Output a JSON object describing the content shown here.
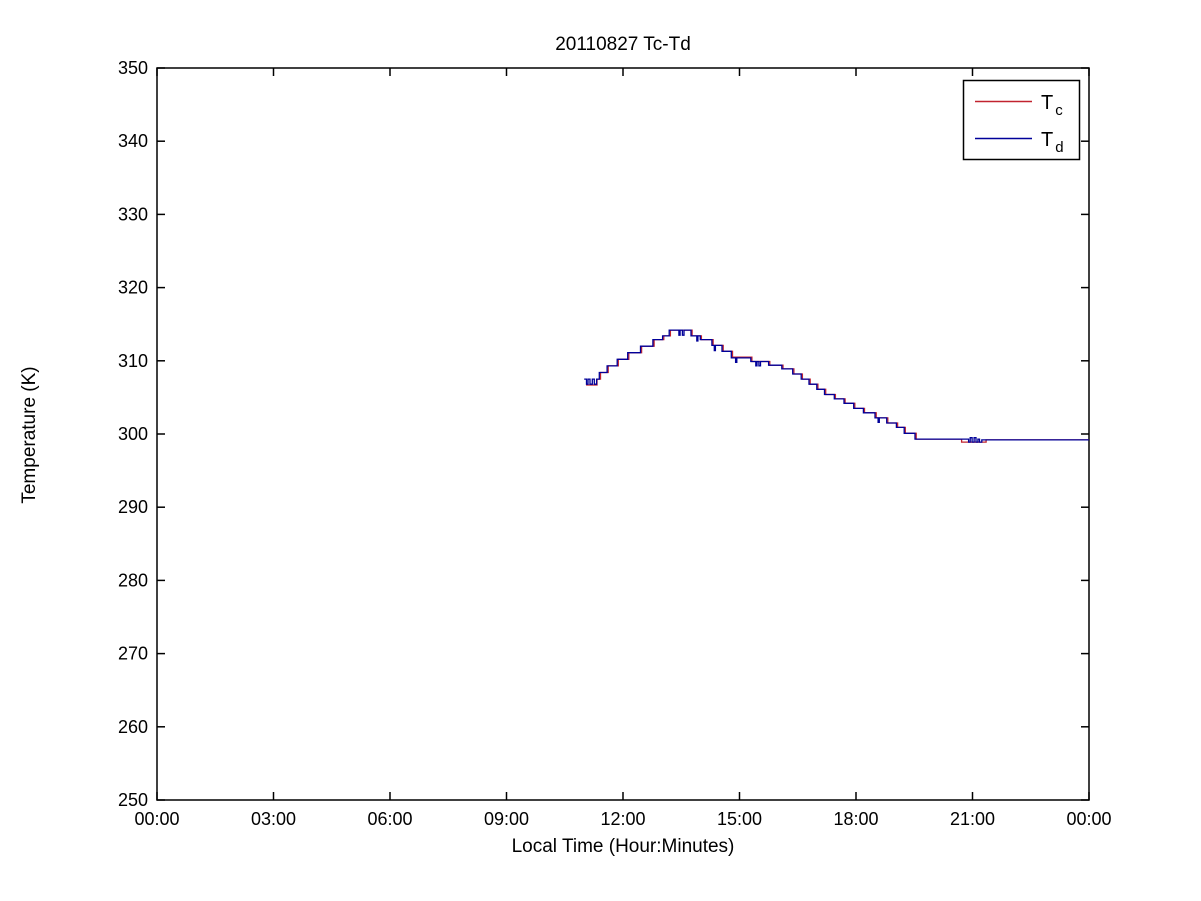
{
  "chart_data": {
    "type": "line",
    "title": "20110827 Tc-Td",
    "xlabel": "Local Time (Hour:Minutes)",
    "ylabel": "Temperature (K)",
    "xlim_hours": [
      0,
      24
    ],
    "ylim": [
      250,
      350
    ],
    "grid": "off",
    "x_ticks": {
      "hours": [
        0,
        3,
        6,
        9,
        12,
        15,
        18,
        21,
        24
      ],
      "labels": [
        "00:00",
        "03:00",
        "06:00",
        "09:00",
        "12:00",
        "15:00",
        "18:00",
        "21:00",
        "00:00"
      ]
    },
    "y_ticks": {
      "values": [
        250,
        260,
        270,
        280,
        290,
        300,
        310,
        320,
        330,
        340,
        350
      ],
      "labels": [
        "250",
        "260",
        "270",
        "280",
        "290",
        "300",
        "310",
        "320",
        "330",
        "340",
        "350"
      ]
    },
    "legend": {
      "position": "top-right",
      "entries": [
        {
          "name": "Tc",
          "label_main": "T",
          "label_sub": "c",
          "color": "#c1232f"
        },
        {
          "name": "Td",
          "label_main": "T",
          "label_sub": "d",
          "color": "#000099"
        }
      ]
    },
    "series": [
      {
        "name": "Tc",
        "color": "#c1232f",
        "points_hour_kelvin": [
          [
            11.05,
            306.7
          ],
          [
            11.33,
            306.7
          ],
          [
            11.33,
            307.5
          ],
          [
            11.42,
            307.5
          ],
          [
            11.42,
            308.4
          ],
          [
            11.62,
            308.4
          ],
          [
            11.62,
            309.3
          ],
          [
            11.88,
            309.3
          ],
          [
            11.88,
            310.2
          ],
          [
            12.15,
            310.2
          ],
          [
            12.15,
            311.1
          ],
          [
            12.48,
            311.1
          ],
          [
            12.48,
            312.0
          ],
          [
            12.8,
            312.0
          ],
          [
            12.8,
            312.9
          ],
          [
            13.05,
            312.9
          ],
          [
            13.05,
            313.4
          ],
          [
            13.22,
            313.4
          ],
          [
            13.22,
            314.2
          ],
          [
            13.78,
            314.2
          ],
          [
            13.78,
            313.4
          ],
          [
            14.02,
            313.4
          ],
          [
            14.02,
            312.9
          ],
          [
            14.32,
            312.9
          ],
          [
            14.32,
            312.1
          ],
          [
            14.58,
            312.1
          ],
          [
            14.58,
            311.3
          ],
          [
            14.82,
            311.3
          ],
          [
            14.82,
            310.5
          ],
          [
            15.32,
            310.5
          ],
          [
            15.32,
            309.9
          ],
          [
            15.78,
            309.9
          ],
          [
            15.78,
            309.4
          ],
          [
            16.12,
            309.4
          ],
          [
            16.12,
            308.9
          ],
          [
            16.4,
            308.9
          ],
          [
            16.4,
            308.2
          ],
          [
            16.62,
            308.2
          ],
          [
            16.62,
            307.5
          ],
          [
            16.82,
            307.5
          ],
          [
            16.82,
            306.8
          ],
          [
            17.02,
            306.8
          ],
          [
            17.02,
            306.1
          ],
          [
            17.22,
            306.1
          ],
          [
            17.22,
            305.4
          ],
          [
            17.47,
            305.4
          ],
          [
            17.47,
            304.8
          ],
          [
            17.72,
            304.8
          ],
          [
            17.72,
            304.2
          ],
          [
            17.97,
            304.2
          ],
          [
            17.97,
            303.5
          ],
          [
            18.22,
            303.5
          ],
          [
            18.22,
            302.9
          ],
          [
            18.52,
            302.9
          ],
          [
            18.52,
            302.2
          ],
          [
            18.82,
            302.2
          ],
          [
            18.82,
            301.5
          ],
          [
            19.07,
            301.5
          ],
          [
            19.07,
            300.9
          ],
          [
            19.27,
            300.9
          ],
          [
            19.27,
            300.1
          ],
          [
            19.55,
            300.1
          ],
          [
            19.55,
            299.3
          ],
          [
            20.72,
            299.3
          ],
          [
            20.72,
            298.9
          ],
          [
            21.35,
            298.9
          ],
          [
            21.35,
            299.2
          ],
          [
            24.0,
            299.2
          ]
        ]
      },
      {
        "name": "Td",
        "color": "#000099",
        "points_hour_kelvin": [
          [
            11.0,
            307.5
          ],
          [
            11.06,
            307.5
          ],
          [
            11.06,
            306.8
          ],
          [
            11.1,
            306.8
          ],
          [
            11.1,
            307.5
          ],
          [
            11.15,
            307.5
          ],
          [
            11.15,
            306.8
          ],
          [
            11.21,
            306.8
          ],
          [
            11.21,
            307.5
          ],
          [
            11.26,
            307.5
          ],
          [
            11.26,
            306.8
          ],
          [
            11.32,
            306.8
          ],
          [
            11.32,
            307.5
          ],
          [
            11.39,
            307.5
          ],
          [
            11.39,
            308.4
          ],
          [
            11.59,
            308.4
          ],
          [
            11.59,
            309.3
          ],
          [
            11.85,
            309.3
          ],
          [
            11.85,
            310.2
          ],
          [
            12.12,
            310.2
          ],
          [
            12.12,
            311.1
          ],
          [
            12.45,
            311.1
          ],
          [
            12.45,
            312.0
          ],
          [
            12.77,
            312.0
          ],
          [
            12.77,
            312.9
          ],
          [
            13.02,
            312.9
          ],
          [
            13.02,
            313.4
          ],
          [
            13.19,
            313.4
          ],
          [
            13.19,
            314.2
          ],
          [
            13.44,
            314.2
          ],
          [
            13.44,
            313.5
          ],
          [
            13.47,
            313.5
          ],
          [
            13.47,
            314.2
          ],
          [
            13.53,
            314.2
          ],
          [
            13.53,
            313.5
          ],
          [
            13.57,
            313.5
          ],
          [
            13.57,
            314.2
          ],
          [
            13.75,
            314.2
          ],
          [
            13.75,
            313.4
          ],
          [
            13.9,
            313.4
          ],
          [
            13.9,
            312.7
          ],
          [
            13.93,
            312.7
          ],
          [
            13.93,
            313.4
          ],
          [
            13.99,
            313.4
          ],
          [
            13.99,
            312.9
          ],
          [
            14.29,
            312.9
          ],
          [
            14.29,
            312.1
          ],
          [
            14.35,
            312.1
          ],
          [
            14.35,
            311.4
          ],
          [
            14.38,
            311.4
          ],
          [
            14.38,
            312.1
          ],
          [
            14.55,
            312.1
          ],
          [
            14.55,
            311.3
          ],
          [
            14.79,
            311.3
          ],
          [
            14.79,
            310.4
          ],
          [
            14.9,
            310.4
          ],
          [
            14.9,
            309.8
          ],
          [
            14.93,
            309.8
          ],
          [
            14.93,
            310.4
          ],
          [
            15.29,
            310.4
          ],
          [
            15.29,
            309.9
          ],
          [
            15.42,
            309.9
          ],
          [
            15.42,
            309.3
          ],
          [
            15.45,
            309.3
          ],
          [
            15.45,
            309.9
          ],
          [
            15.5,
            309.9
          ],
          [
            15.5,
            309.3
          ],
          [
            15.54,
            309.3
          ],
          [
            15.54,
            309.9
          ],
          [
            15.75,
            309.9
          ],
          [
            15.75,
            309.4
          ],
          [
            16.09,
            309.4
          ],
          [
            16.09,
            308.9
          ],
          [
            16.37,
            308.9
          ],
          [
            16.37,
            308.2
          ],
          [
            16.59,
            308.2
          ],
          [
            16.59,
            307.5
          ],
          [
            16.79,
            307.5
          ],
          [
            16.79,
            306.8
          ],
          [
            16.99,
            306.8
          ],
          [
            16.99,
            306.1
          ],
          [
            17.19,
            306.1
          ],
          [
            17.19,
            305.4
          ],
          [
            17.44,
            305.4
          ],
          [
            17.44,
            304.8
          ],
          [
            17.69,
            304.8
          ],
          [
            17.69,
            304.2
          ],
          [
            17.94,
            304.2
          ],
          [
            17.94,
            303.5
          ],
          [
            18.19,
            303.5
          ],
          [
            18.19,
            302.9
          ],
          [
            18.49,
            302.9
          ],
          [
            18.49,
            302.2
          ],
          [
            18.57,
            302.2
          ],
          [
            18.57,
            301.6
          ],
          [
            18.6,
            301.6
          ],
          [
            18.6,
            302.2
          ],
          [
            18.79,
            302.2
          ],
          [
            18.79,
            301.5
          ],
          [
            19.04,
            301.5
          ],
          [
            19.04,
            300.9
          ],
          [
            19.24,
            300.9
          ],
          [
            19.24,
            300.1
          ],
          [
            19.52,
            300.1
          ],
          [
            19.52,
            299.3
          ],
          [
            20.9,
            299.3
          ],
          [
            20.9,
            298.9
          ],
          [
            20.94,
            298.9
          ],
          [
            20.94,
            299.5
          ],
          [
            20.99,
            299.5
          ],
          [
            20.99,
            298.9
          ],
          [
            21.04,
            298.9
          ],
          [
            21.04,
            299.5
          ],
          [
            21.09,
            299.5
          ],
          [
            21.09,
            298.9
          ],
          [
            21.14,
            298.9
          ],
          [
            21.14,
            299.3
          ],
          [
            21.18,
            299.3
          ],
          [
            21.18,
            298.9
          ],
          [
            21.24,
            298.9
          ],
          [
            21.24,
            299.2
          ],
          [
            24.0,
            299.2
          ]
        ]
      }
    ]
  }
}
